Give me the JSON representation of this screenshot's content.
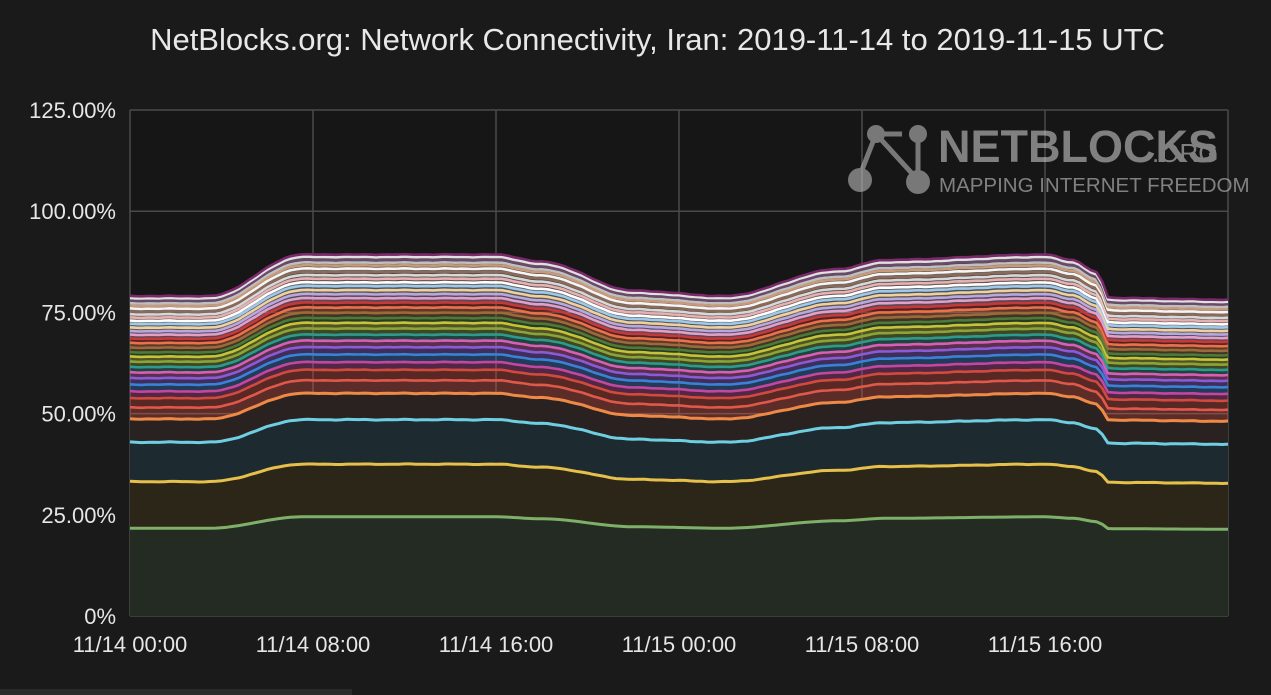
{
  "chart_data": {
    "type": "area",
    "title": "NetBlocks.org: Network Connectivity, Iran: 2019-11-14 to 2019-11-15 UTC",
    "xlabel": "",
    "ylabel": "",
    "ylim": [
      0,
      125
    ],
    "y_ticks": [
      "125.00%",
      "100.00%",
      "75.00%",
      "50.00%",
      "25.00%",
      "0%"
    ],
    "y_tick_values": [
      125,
      100,
      75,
      50,
      25,
      0
    ],
    "x_ticks": [
      "11/14 00:00",
      "11/14 08:00",
      "11/14 16:00",
      "11/15 00:00",
      "11/15 08:00",
      "11/15 16:00"
    ],
    "x_tick_hours": [
      0,
      8,
      16,
      24,
      32,
      40
    ],
    "xlim_hours": [
      0,
      48
    ],
    "grid": true,
    "stacked": true,
    "legend": "none",
    "profile": {
      "hours": [
        0,
        3.5,
        7.5,
        9,
        16,
        18,
        22,
        26,
        31,
        33,
        40,
        41.2,
        42.3,
        42.8,
        48
      ],
      "factor": [
        0.885,
        0.885,
        1.0,
        1.0,
        1.0,
        0.98,
        0.9,
        0.885,
        0.96,
        0.985,
        1.0,
        0.985,
        0.95,
        0.88,
        0.875
      ]
    },
    "series": [
      {
        "values": [
          24.5
        ],
        "color": "#7fb069"
      },
      {
        "values": [
          13.0
        ],
        "color": "#e6c04a"
      },
      {
        "values": [
          11.0
        ],
        "color": "#6fcfe2"
      },
      {
        "values": [
          6.5
        ],
        "color": "#ee8a45"
      },
      {
        "values": [
          3.2
        ],
        "color": "#e0584a"
      },
      {
        "values": [
          2.6
        ],
        "color": "#d24a3e"
      },
      {
        "values": [
          1.9
        ],
        "color": "#c4479f"
      },
      {
        "values": [
          1.9
        ],
        "color": "#3b82d6"
      },
      {
        "values": [
          1.8
        ],
        "color": "#8a5bd6"
      },
      {
        "values": [
          1.6
        ],
        "color": "#d95fb5"
      },
      {
        "values": [
          1.5
        ],
        "color": "#2e9a8e"
      },
      {
        "values": [
          1.5
        ],
        "color": "#8aa43a"
      },
      {
        "values": [
          1.4
        ],
        "color": "#c4c43a"
      },
      {
        "values": [
          1.2
        ],
        "color": "#4c7a3a"
      },
      {
        "values": [
          1.3
        ],
        "color": "#9a6b3a"
      },
      {
        "values": [
          1.3
        ],
        "color": "#e8734a"
      },
      {
        "values": [
          1.2
        ],
        "color": "#c43a3a"
      },
      {
        "values": [
          1.1
        ],
        "color": "#e0a0c8"
      },
      {
        "values": [
          1.0
        ],
        "color": "#b8a8e0"
      },
      {
        "values": [
          1.0
        ],
        "color": "#f0d0a0"
      },
      {
        "values": [
          1.0
        ],
        "color": "#a0c8e8"
      },
      {
        "values": [
          0.9
        ],
        "color": "#ffffff"
      },
      {
        "values": [
          0.9
        ],
        "color": "#e8b0b0"
      },
      {
        "values": [
          0.9
        ],
        "color": "#d8d8d8"
      },
      {
        "values": [
          0.8
        ],
        "color": "#8a6a5a"
      },
      {
        "values": [
          0.8
        ],
        "color": "#f5f5f5"
      },
      {
        "values": [
          0.8
        ],
        "color": "#c89a7a"
      },
      {
        "values": [
          0.7
        ],
        "color": "#bfbfbf"
      },
      {
        "values": [
          0.7
        ],
        "color": "#6a4a6a"
      },
      {
        "values": [
          0.7
        ],
        "color": "#e0e0e0"
      },
      {
        "values": [
          0.6
        ],
        "color": "#7a2a6a"
      }
    ]
  },
  "watermark": {
    "brand": "NETBLOCKS",
    "suffix": ".ORG",
    "tagline": "MAPPING INTERNET FREEDOM"
  },
  "colors": {
    "background": "#1a1a1a",
    "plot_background": "#161616",
    "grid": "#4a4a4a",
    "text": "#e6e6e6"
  }
}
